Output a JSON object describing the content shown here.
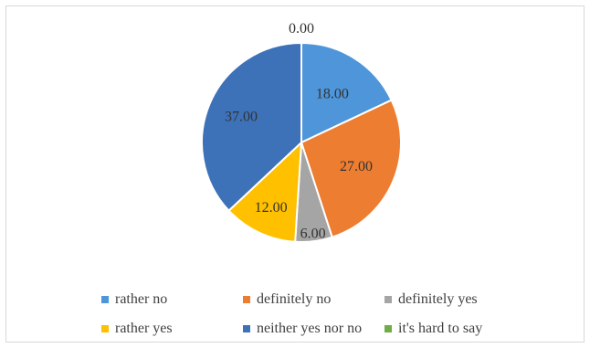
{
  "chart_data": {
    "type": "pie",
    "categories": [
      "rather no",
      "definitely no",
      "definitely yes",
      "rather yes",
      "neither yes nor no",
      "it's hard to say"
    ],
    "values": [
      18.0,
      27.0,
      6.0,
      12.0,
      37.0,
      0.0
    ],
    "value_labels": [
      "18.00",
      "27.00",
      "6.00",
      "12.00",
      "37.00",
      "0.00"
    ],
    "colors": [
      "#4e95d9",
      "#ed7d31",
      "#a5a5a5",
      "#ffc000",
      "#3d71b8",
      "#70ad47"
    ],
    "legend_position": "bottom",
    "start_angle": "top, clockwise"
  }
}
